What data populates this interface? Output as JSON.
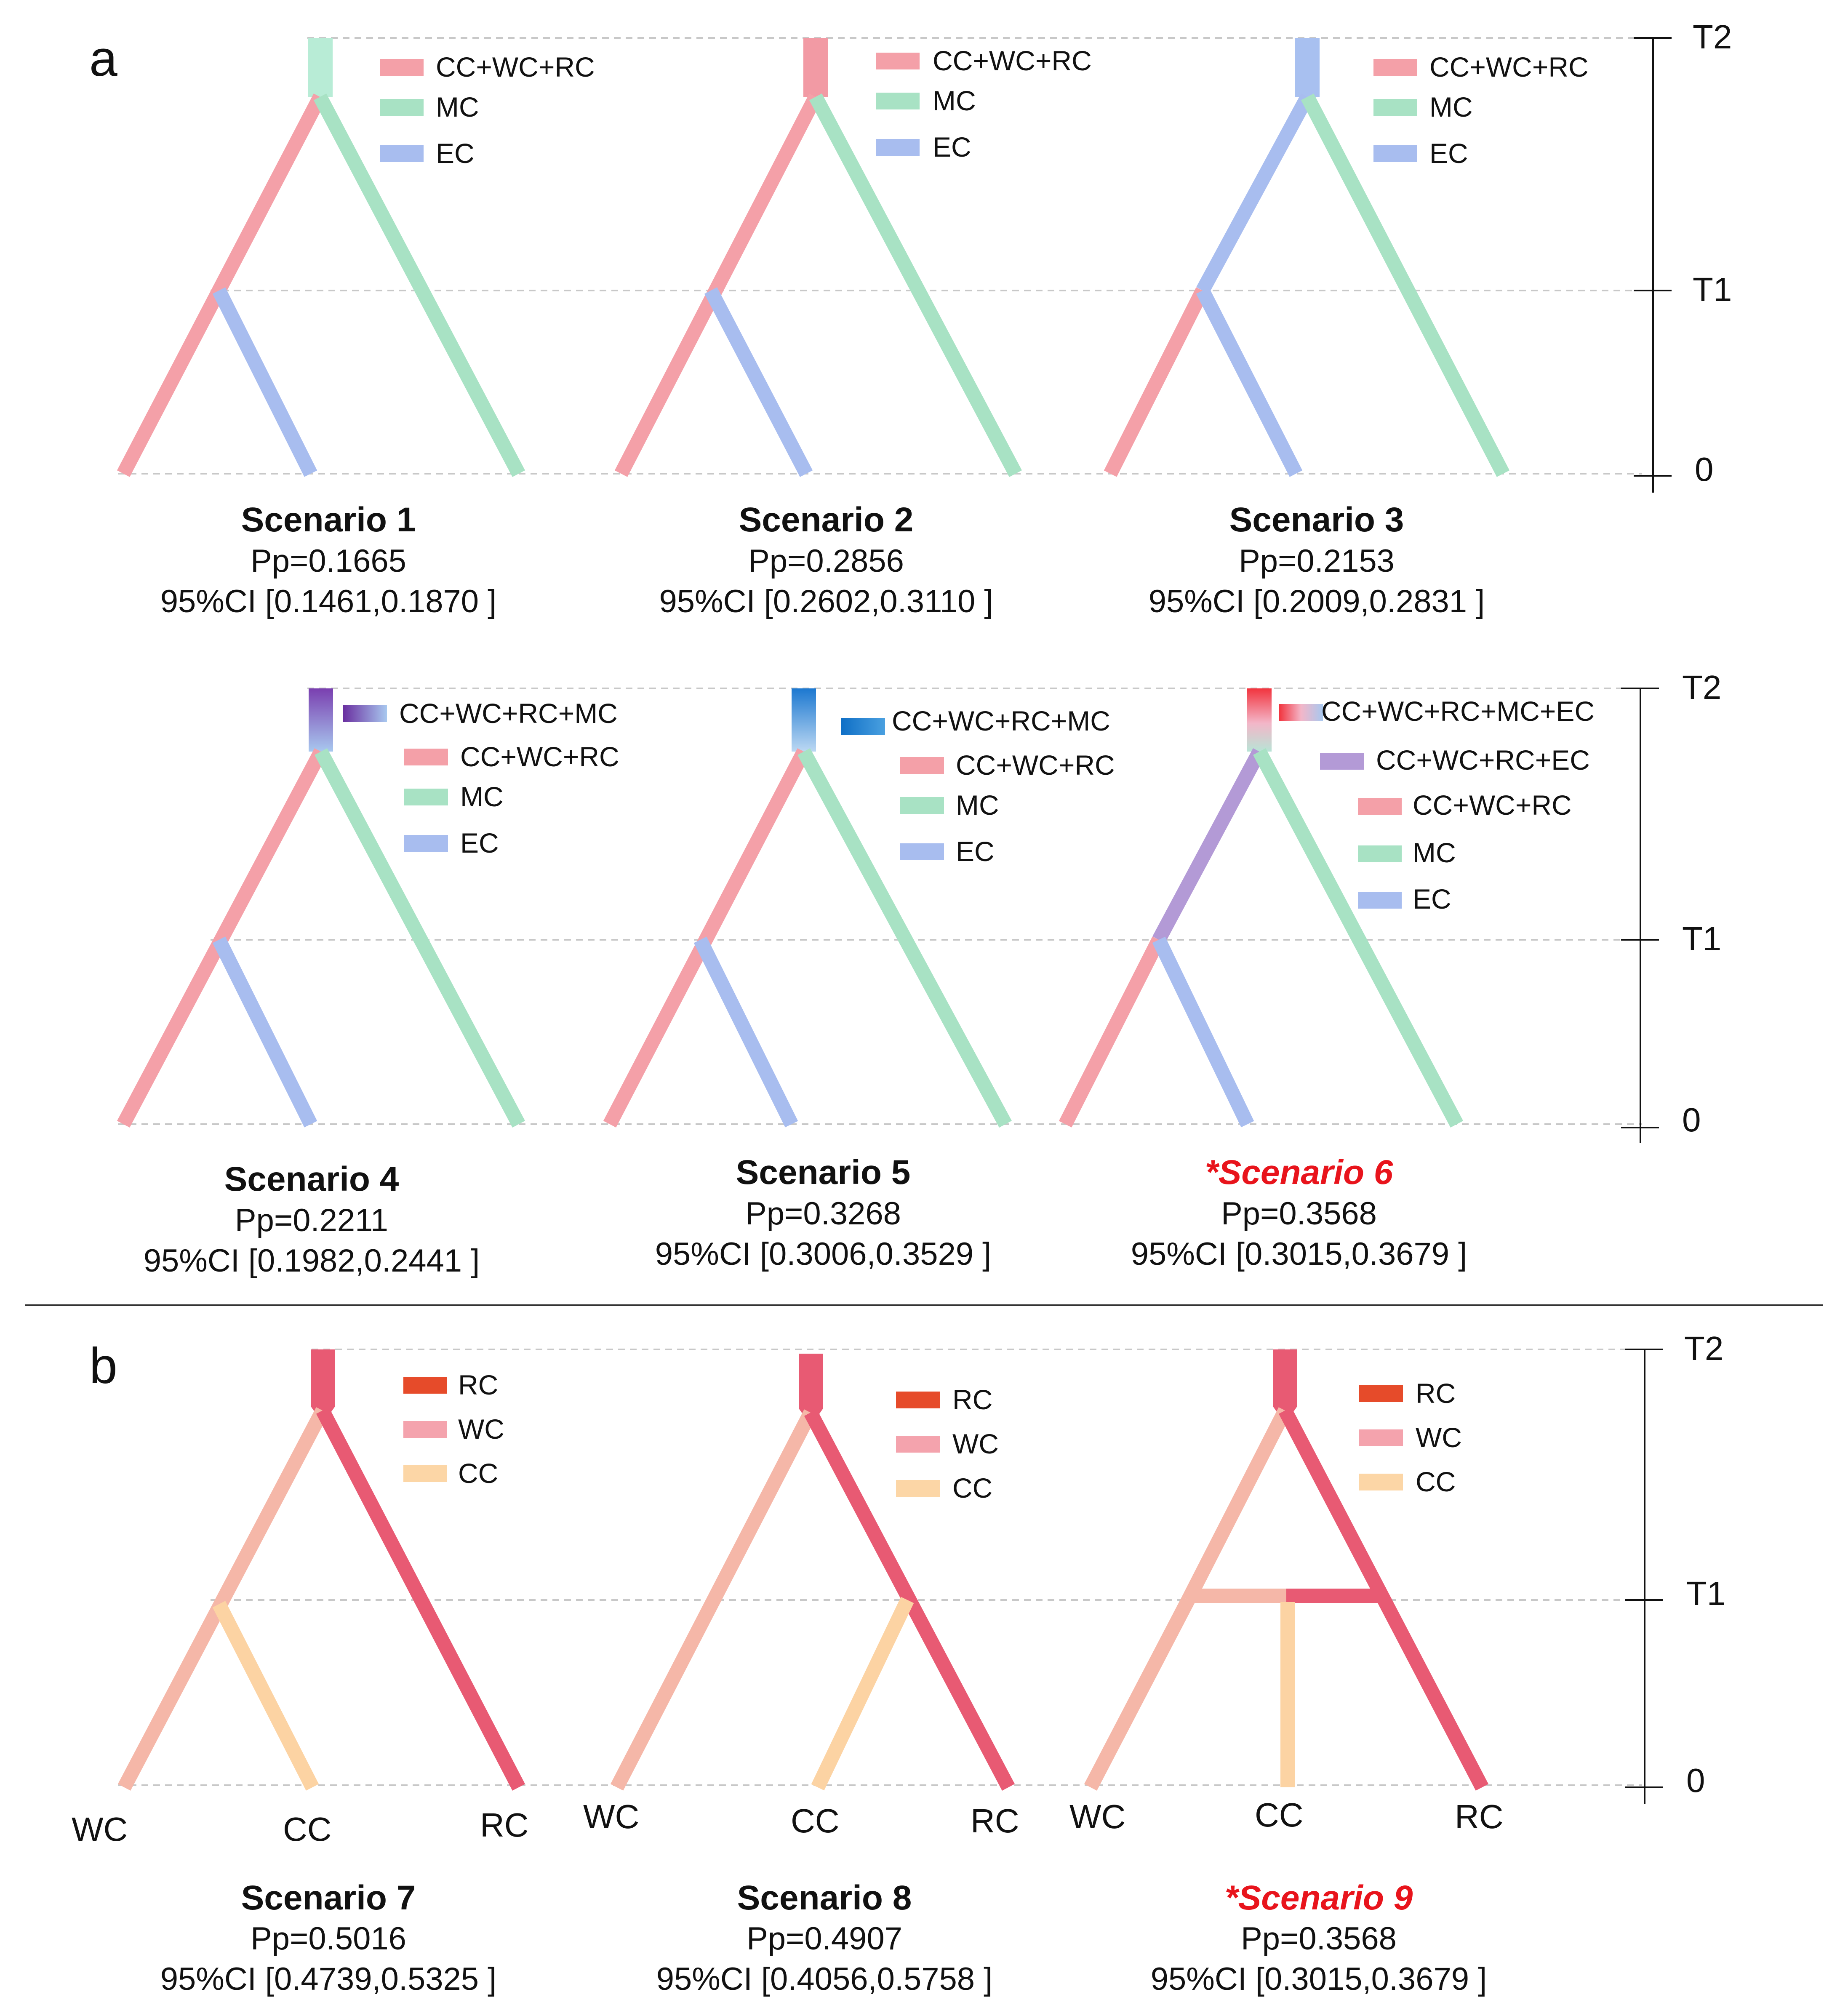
{
  "panels": {
    "a": {
      "letter": "a"
    },
    "b": {
      "letter": "b"
    }
  },
  "axis_labels": {
    "t2": "T2",
    "t1": "T1",
    "zero": "0"
  },
  "colors": {
    "cc_wc_rc": "#f4a0a8",
    "mc": "#a8e2c4",
    "ec": "#a8bdef",
    "cc_wc_rc_ec": "#b39ad6",
    "rc": "#e64b2a",
    "wc": "#f4a3ad",
    "cc": "#fcd6a6",
    "b_left": "#f5b7a8",
    "b_right": "#e85a73",
    "b_cc": "#fcd3a3",
    "highlight": "#e8141c",
    "divider": "#333333"
  },
  "legend_a3": [
    "CC+WC+RC",
    "MC",
    "EC"
  ],
  "legend_a4": [
    "CC+WC+RC+MC",
    "CC+WC+RC",
    "MC",
    "EC"
  ],
  "legend_a6": [
    "CC+WC+RC+MC+EC",
    "CC+WC+RC+EC",
    "CC+WC+RC",
    "MC",
    "EC"
  ],
  "legend_b": [
    "RC",
    "WC",
    "CC"
  ],
  "leaves_b": [
    "WC",
    "CC",
    "RC"
  ],
  "scenarios": [
    {
      "title": "Scenario 1",
      "pp": "Pp=0.1665",
      "ci": "95%CI [0.1461,0.1870 ]"
    },
    {
      "title": "Scenario 2",
      "pp": "Pp=0.2856",
      "ci": "95%CI [0.2602,0.3110 ]"
    },
    {
      "title": "Scenario 3",
      "pp": "Pp=0.2153",
      "ci": "95%CI [0.2009,0.2831 ]"
    },
    {
      "title": "Scenario 4",
      "pp": "Pp=0.2211",
      "ci": "95%CI [0.1982,0.2441 ]"
    },
    {
      "title": "Scenario 5",
      "pp": "Pp=0.3268",
      "ci": "95%CI [0.3006,0.3529 ]"
    },
    {
      "title": "*Scenario 6",
      "pp": "Pp=0.3568",
      "ci": "95%CI [0.3015,0.3679 ]"
    },
    {
      "title": "Scenario 7",
      "pp": "Pp=0.5016",
      "ci": "95%CI [0.4739,0.5325 ]"
    },
    {
      "title": "Scenario 8",
      "pp": "Pp=0.4907",
      "ci": "95%CI [0.4056,0.5758 ]"
    },
    {
      "title": "*Scenario 9",
      "pp": "Pp=0.3568",
      "ci": "95%CI [0.3015,0.3679 ]"
    }
  ]
}
